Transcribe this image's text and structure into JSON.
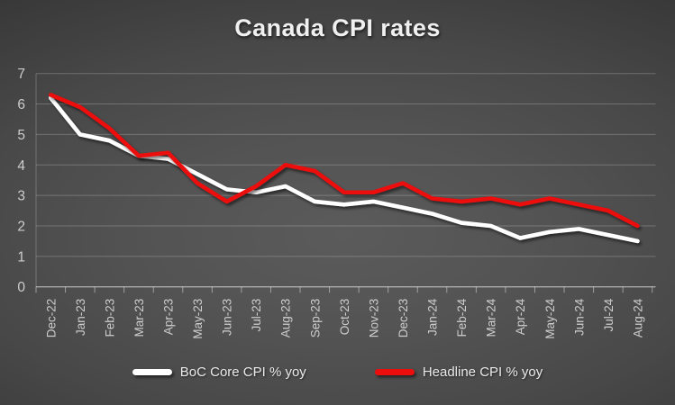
{
  "chart_data": {
    "type": "line",
    "title": "Canada CPI rates",
    "categories": [
      "Dec-22",
      "Jan-23",
      "Feb-23",
      "Mar-23",
      "Apr-23",
      "May-23",
      "Jun-23",
      "Jul-23",
      "Aug-23",
      "Sep-23",
      "Oct-23",
      "Nov-23",
      "Dec-23",
      "Jan-24",
      "Feb-24",
      "Mar-24",
      "Apr-24",
      "May-24",
      "Jun-24",
      "Jul-24",
      "Aug-24"
    ],
    "series": [
      {
        "name": "BoC Core CPI % yoy",
        "color": "#ffffff",
        "values": [
          6.2,
          5.0,
          4.8,
          4.3,
          4.2,
          3.7,
          3.2,
          3.1,
          3.3,
          2.8,
          2.7,
          2.8,
          2.6,
          2.4,
          2.1,
          2.0,
          1.6,
          1.8,
          1.9,
          1.7,
          1.5
        ]
      },
      {
        "name": "Headline CPI % yoy",
        "color": "#ec0d0d",
        "values": [
          6.3,
          5.9,
          5.2,
          4.3,
          4.4,
          3.4,
          2.8,
          3.3,
          4.0,
          3.8,
          3.1,
          3.1,
          3.4,
          2.9,
          2.8,
          2.9,
          2.7,
          2.9,
          2.7,
          2.5,
          2.0
        ]
      }
    ],
    "ylim": [
      0,
      7
    ],
    "yticks": [
      0,
      1,
      2,
      3,
      4,
      5,
      6,
      7
    ],
    "grid": true,
    "legend_position": "bottom",
    "x_label_rotation": -90
  }
}
